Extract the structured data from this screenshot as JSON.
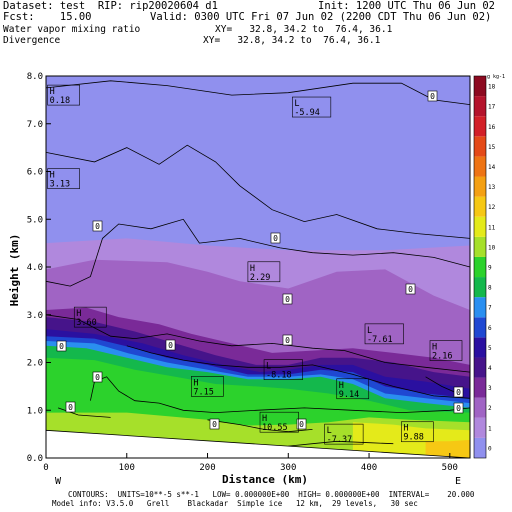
{
  "header": {
    "dataset": "Dataset: test  RIP: rip20020604 d1",
    "init": "Init: 1200 UTC Thu 06 Jun 02",
    "fcst": "Fcst:    15.00",
    "valid": "Valid: 0300 UTC Fri 07 Jun 02 (2200 CDT Thu 06 Jun 02)",
    "field1": "Water vapor mixing ratio",
    "xy1": "XY=   32.8, 34.2 to  76.4, 36.1",
    "field2": "Divergence",
    "xy2": "XY=   32.8, 34.2 to  76.4, 36.1"
  },
  "footer": {
    "contours": "CONTOURS:  UNITS=10**-5 s**-1   LOW= 0.000000E+00  HIGH= 0.000000E+00  INTERVAL=    20.000",
    "model_info": "Model info: V3.5.0   Grell    Blackadar  Simple ice   12 km,  29 levels,   30 sec"
  },
  "chart_data": {
    "type": "heatmap",
    "xlabel": "Distance (km)",
    "ylabel": "Height (km)",
    "xlim": [
      0,
      525
    ],
    "ylim": [
      0,
      8
    ],
    "x_ticks": [
      "0",
      "100",
      "200",
      "300",
      "400",
      "500"
    ],
    "y_ticks": [
      "0.0",
      "1.0",
      "2.0",
      "3.0",
      "4.0",
      "5.0",
      "6.0",
      "7.0",
      "8.0"
    ],
    "x_end_labels": {
      "left": "W",
      "right": "E"
    },
    "colorbar": {
      "unit": "g kg-1",
      "levels": [
        "0",
        "1",
        "2",
        "3",
        "4",
        "5",
        "6",
        "7",
        "8",
        "9",
        "10",
        "11",
        "12",
        "13",
        "14",
        "15",
        "16",
        "17",
        "18"
      ],
      "colors": [
        "#9090ee",
        "#b088dd",
        "#a064c4",
        "#7a2a98",
        "#46148a",
        "#2a10a0",
        "#1f48d2",
        "#2a8ff0",
        "#14b84c",
        "#2cd22c",
        "#a6e02a",
        "#e4ea1a",
        "#f6c814",
        "#f4a012",
        "#ee7414",
        "#e44a18",
        "#d22028",
        "#b4142c",
        "#8c0a20"
      ]
    },
    "terrain_height_km": [
      [
        0,
        0.58
      ],
      [
        525,
        0
      ]
    ],
    "contour_labels": [
      "0",
      "0",
      "0",
      "0",
      "0",
      "0",
      "0",
      "0",
      "0",
      "0",
      "0",
      "0",
      "0",
      "0"
    ],
    "extrema": [
      {
        "type": "H",
        "value": "0.18",
        "x": 2,
        "y": 7.6
      },
      {
        "type": "L",
        "value": "-5.94",
        "x": 305,
        "y": 7.35
      },
      {
        "type": "H",
        "value": "3.13",
        "x": 2,
        "y": 5.85
      },
      {
        "type": "H",
        "value": "2.29",
        "x": 250,
        "y": 3.9
      },
      {
        "type": "H",
        "value": "3.60",
        "x": 35,
        "y": 2.95
      },
      {
        "type": "L",
        "value": "-7.61",
        "x": 395,
        "y": 2.6
      },
      {
        "type": "H",
        "value": "2.16",
        "x": 495,
        "y": 2.25
      },
      {
        "type": "L",
        "value": "-8.18",
        "x": 270,
        "y": 1.85
      },
      {
        "type": "H",
        "value": "7.15",
        "x": 180,
        "y": 1.5
      },
      {
        "type": "H",
        "value": "9.14",
        "x": 360,
        "y": 1.45
      },
      {
        "type": "H",
        "value": "10.55",
        "x": 265,
        "y": 0.75
      },
      {
        "type": "L",
        "value": "-7.37",
        "x": 345,
        "y": 0.5
      },
      {
        "type": "H",
        "value": "9.88",
        "x": 440,
        "y": 0.55
      }
    ]
  }
}
